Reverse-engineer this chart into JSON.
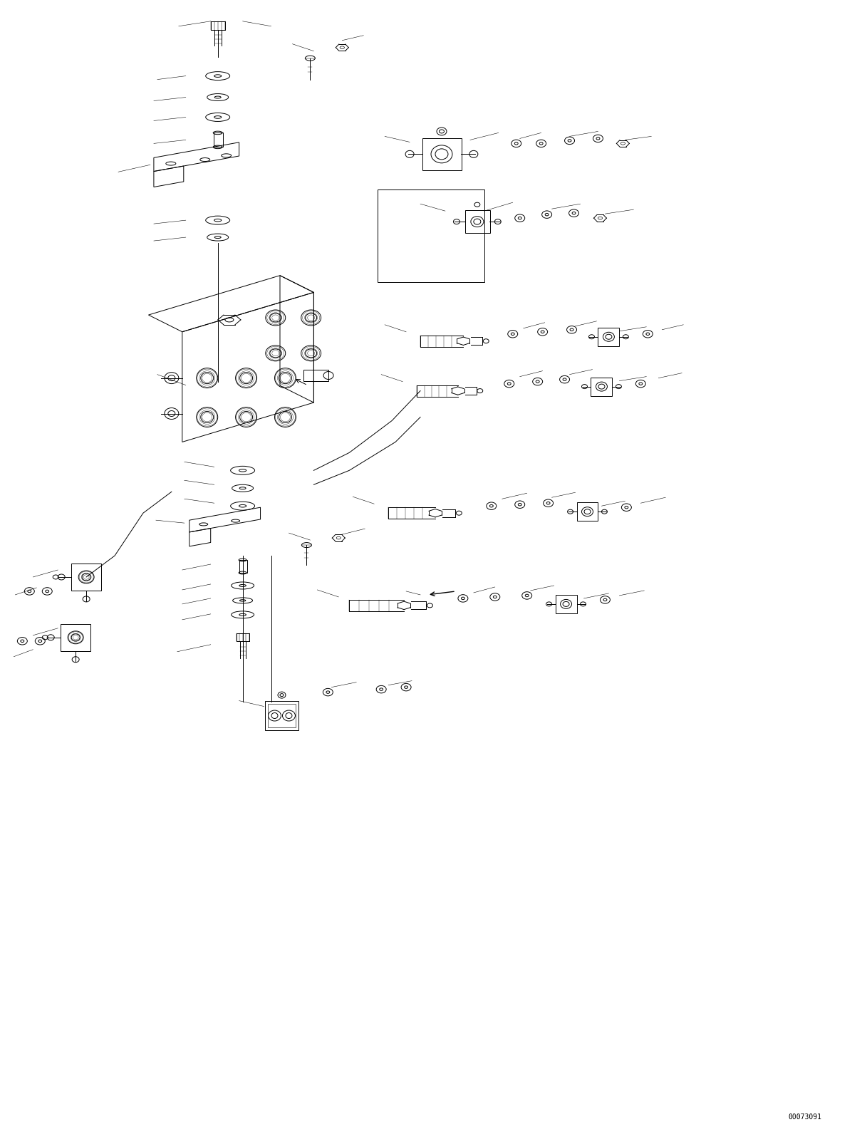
{
  "figure_width": 12.1,
  "figure_height": 16.03,
  "dpi": 100,
  "background_color": "#ffffff",
  "line_color": "#000000",
  "lw": 0.7,
  "part_number_text": "00073091",
  "leader_lines": [
    [
      305,
      28,
      275,
      45
    ],
    [
      305,
      28,
      360,
      55
    ],
    [
      270,
      75,
      240,
      85
    ],
    [
      270,
      100,
      240,
      110
    ],
    [
      270,
      125,
      240,
      135
    ],
    [
      270,
      150,
      240,
      160
    ],
    [
      270,
      175,
      230,
      185
    ],
    [
      270,
      200,
      230,
      210
    ],
    [
      360,
      55,
      420,
      72
    ],
    [
      270,
      255,
      230,
      270
    ],
    [
      270,
      280,
      230,
      295
    ],
    [
      270,
      320,
      230,
      335
    ],
    [
      270,
      345,
      230,
      360
    ],
    [
      325,
      620,
      280,
      640
    ],
    [
      325,
      645,
      280,
      660
    ],
    [
      325,
      670,
      280,
      685
    ],
    [
      325,
      695,
      280,
      710
    ],
    [
      325,
      750,
      280,
      765
    ],
    [
      325,
      775,
      280,
      790
    ],
    [
      325,
      800,
      280,
      815
    ],
    [
      325,
      825,
      280,
      840
    ],
    [
      270,
      830,
      220,
      850
    ],
    [
      660,
      200,
      710,
      190
    ],
    [
      660,
      200,
      700,
      215
    ],
    [
      770,
      200,
      820,
      195
    ],
    [
      770,
      200,
      820,
      215
    ],
    [
      660,
      310,
      700,
      305
    ],
    [
      660,
      310,
      700,
      325
    ],
    [
      770,
      300,
      820,
      295
    ],
    [
      770,
      300,
      820,
      310
    ],
    [
      670,
      480,
      720,
      470
    ],
    [
      670,
      480,
      720,
      495
    ],
    [
      790,
      470,
      840,
      462
    ],
    [
      790,
      470,
      840,
      478
    ],
    [
      840,
      470,
      890,
      465
    ],
    [
      670,
      540,
      720,
      530
    ],
    [
      670,
      540,
      720,
      550
    ],
    [
      790,
      530,
      840,
      525
    ],
    [
      790,
      530,
      840,
      535
    ],
    [
      840,
      530,
      890,
      525
    ],
    [
      670,
      720,
      730,
      710
    ],
    [
      670,
      720,
      730,
      730
    ],
    [
      810,
      710,
      860,
      703
    ],
    [
      810,
      710,
      860,
      718
    ],
    [
      880,
      710,
      920,
      705
    ],
    [
      600,
      840,
      640,
      832
    ],
    [
      600,
      840,
      640,
      848
    ],
    [
      730,
      835,
      780,
      828
    ],
    [
      730,
      835,
      780,
      843
    ],
    [
      810,
      830,
      860,
      825
    ],
    [
      810,
      830,
      860,
      835
    ],
    [
      480,
      970,
      520,
      963
    ],
    [
      480,
      970,
      520,
      978
    ],
    [
      590,
      965,
      640,
      960
    ],
    [
      590,
      965,
      640,
      970
    ],
    [
      110,
      830,
      75,
      845
    ],
    [
      110,
      870,
      75,
      885
    ],
    [
      140,
      760,
      100,
      775
    ],
    [
      140,
      800,
      100,
      815
    ],
    [
      80,
      730,
      50,
      745
    ],
    [
      80,
      760,
      50,
      775
    ]
  ],
  "isometric_lines": [
    [
      370,
      550,
      580,
      680
    ],
    [
      370,
      550,
      370,
      1050
    ],
    [
      370,
      550,
      160,
      680
    ],
    [
      580,
      680,
      580,
      1050
    ],
    [
      160,
      680,
      160,
      1050
    ],
    [
      370,
      1050,
      580,
      1050
    ],
    [
      370,
      1050,
      160,
      1050
    ]
  ]
}
